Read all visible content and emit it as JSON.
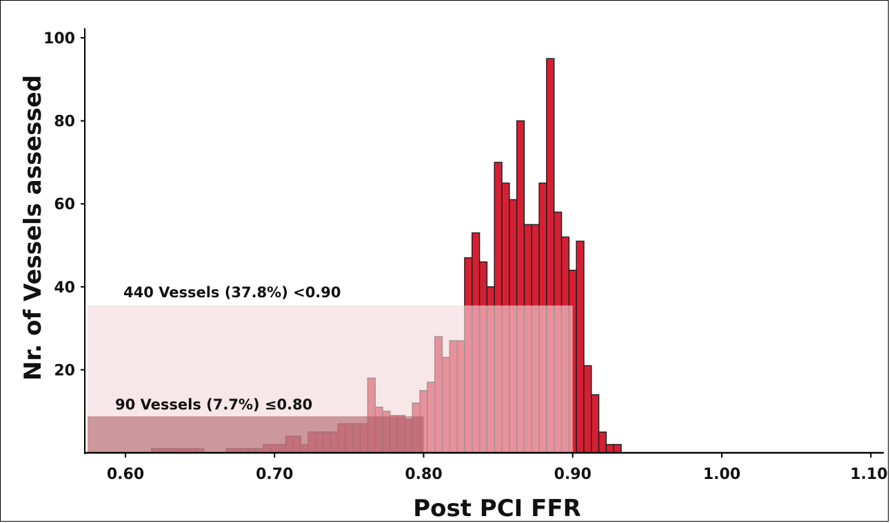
{
  "chart_data": {
    "type": "bar",
    "xlabel": "Post PCI FFR",
    "ylabel": "Nr. of Vessels assessed",
    "xlim": [
      0.575,
      1.11
    ],
    "ylim": [
      0,
      102
    ],
    "bin_width": 0.005,
    "x_ticks": [
      0.6,
      0.7,
      0.8,
      0.9,
      1.0,
      1.1
    ],
    "x_tick_labels": [
      "0.60",
      "0.70",
      "0.80",
      "0.90",
      "1.00",
      "1.10"
    ],
    "y_ticks": [
      20,
      40,
      60,
      80,
      100
    ],
    "y_tick_labels": [
      "20",
      "40",
      "60",
      "80",
      "100"
    ],
    "bars": [
      {
        "x": 0.62,
        "count": 1
      },
      {
        "x": 0.625,
        "count": 1
      },
      {
        "x": 0.63,
        "count": 1
      },
      {
        "x": 0.635,
        "count": 1
      },
      {
        "x": 0.64,
        "count": 1
      },
      {
        "x": 0.645,
        "count": 1
      },
      {
        "x": 0.65,
        "count": 1
      },
      {
        "x": 0.67,
        "count": 1
      },
      {
        "x": 0.675,
        "count": 1
      },
      {
        "x": 0.68,
        "count": 1
      },
      {
        "x": 0.685,
        "count": 1
      },
      {
        "x": 0.69,
        "count": 1
      },
      {
        "x": 0.695,
        "count": 2
      },
      {
        "x": 0.7,
        "count": 2
      },
      {
        "x": 0.705,
        "count": 2
      },
      {
        "x": 0.71,
        "count": 4
      },
      {
        "x": 0.715,
        "count": 4
      },
      {
        "x": 0.72,
        "count": 2
      },
      {
        "x": 0.725,
        "count": 5
      },
      {
        "x": 0.73,
        "count": 5
      },
      {
        "x": 0.735,
        "count": 5
      },
      {
        "x": 0.74,
        "count": 5
      },
      {
        "x": 0.745,
        "count": 7
      },
      {
        "x": 0.75,
        "count": 7
      },
      {
        "x": 0.755,
        "count": 7
      },
      {
        "x": 0.76,
        "count": 7
      },
      {
        "x": 0.765,
        "count": 18
      },
      {
        "x": 0.77,
        "count": 11
      },
      {
        "x": 0.775,
        "count": 10
      },
      {
        "x": 0.78,
        "count": 9
      },
      {
        "x": 0.785,
        "count": 9
      },
      {
        "x": 0.79,
        "count": 8
      },
      {
        "x": 0.795,
        "count": 12
      },
      {
        "x": 0.8,
        "count": 15
      },
      {
        "x": 0.805,
        "count": 17
      },
      {
        "x": 0.81,
        "count": 28
      },
      {
        "x": 0.815,
        "count": 23
      },
      {
        "x": 0.82,
        "count": 27
      },
      {
        "x": 0.825,
        "count": 27
      },
      {
        "x": 0.83,
        "count": 47
      },
      {
        "x": 0.835,
        "count": 53
      },
      {
        "x": 0.84,
        "count": 46
      },
      {
        "x": 0.845,
        "count": 40
      },
      {
        "x": 0.85,
        "count": 70
      },
      {
        "x": 0.855,
        "count": 65
      },
      {
        "x": 0.86,
        "count": 61
      },
      {
        "x": 0.865,
        "count": 80
      },
      {
        "x": 0.87,
        "count": 55
      },
      {
        "x": 0.875,
        "count": 55
      },
      {
        "x": 0.88,
        "count": 65
      },
      {
        "x": 0.885,
        "count": 95
      },
      {
        "x": 0.89,
        "count": 58
      },
      {
        "x": 0.895,
        "count": 52
      },
      {
        "x": 0.9,
        "count": 44
      },
      {
        "x": 0.905,
        "count": 51
      },
      {
        "x": 0.91,
        "count": 21
      },
      {
        "x": 0.915,
        "count": 14
      },
      {
        "x": 0.92,
        "count": 5
      },
      {
        "x": 0.925,
        "count": 2
      },
      {
        "x": 0.93,
        "count": 2
      }
    ],
    "annotations": [
      {
        "text": "440 Vessels (37.8%) <0.90",
        "x_from": 0.575,
        "x_to": 0.9,
        "height": 35.5
      },
      {
        "text": "90 Vessels (7.7%) ≤0.80",
        "x_from": 0.575,
        "x_to": 0.8,
        "height": 8.8
      }
    ],
    "colors": {
      "bar_fill": "#d71f33",
      "bar_stroke": "#222222",
      "band_large": "#f2d9dc",
      "band_small": "#a9565f"
    }
  }
}
